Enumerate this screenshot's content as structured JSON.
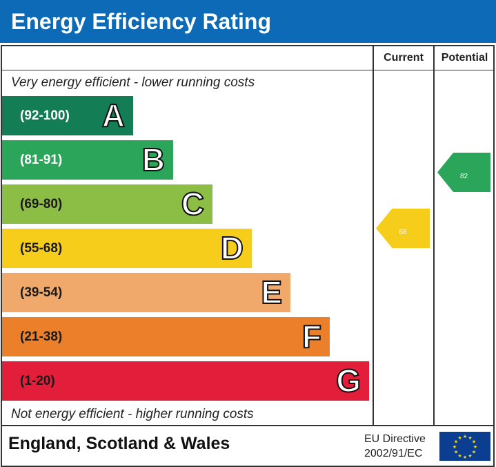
{
  "chart_data": {
    "type": "bar",
    "title": "Energy Efficiency Rating",
    "top_note": "Very energy efficient - lower running costs",
    "bottom_note": "Not energy efficient - higher running costs",
    "columns": [
      "Current",
      "Potential"
    ],
    "bands": [
      {
        "letter": "A",
        "range": "(92-100)",
        "color": "#137d55",
        "text_color": "#ffffff"
      },
      {
        "letter": "B",
        "range": "(81-91)",
        "color": "#2aa55a",
        "text_color": "#ffffff"
      },
      {
        "letter": "C",
        "range": "(69-80)",
        "color": "#8cbd44",
        "text_color": "#1a1a1a"
      },
      {
        "letter": "D",
        "range": "(55-68)",
        "color": "#f6cd1a",
        "text_color": "#1a1a1a"
      },
      {
        "letter": "E",
        "range": "(39-54)",
        "color": "#f1a96b",
        "text_color": "#1a1a1a"
      },
      {
        "letter": "F",
        "range": "(21-38)",
        "color": "#ec7f29",
        "text_color": "#1a1a1a"
      },
      {
        "letter": "G",
        "range": "(1-20)",
        "color": "#e21e3a",
        "text_color": "#1a1a1a"
      }
    ],
    "current": {
      "value": "68",
      "band": "D",
      "color": "#f6cd1a"
    },
    "potential": {
      "value": "82",
      "band": "B",
      "color": "#2aa55a"
    }
  },
  "footer": {
    "region": "England, Scotland & Wales",
    "directive_line1": "EU Directive",
    "directive_line2": "2002/91/EC"
  },
  "colors": {
    "title_bar": "#0d6ab7"
  }
}
